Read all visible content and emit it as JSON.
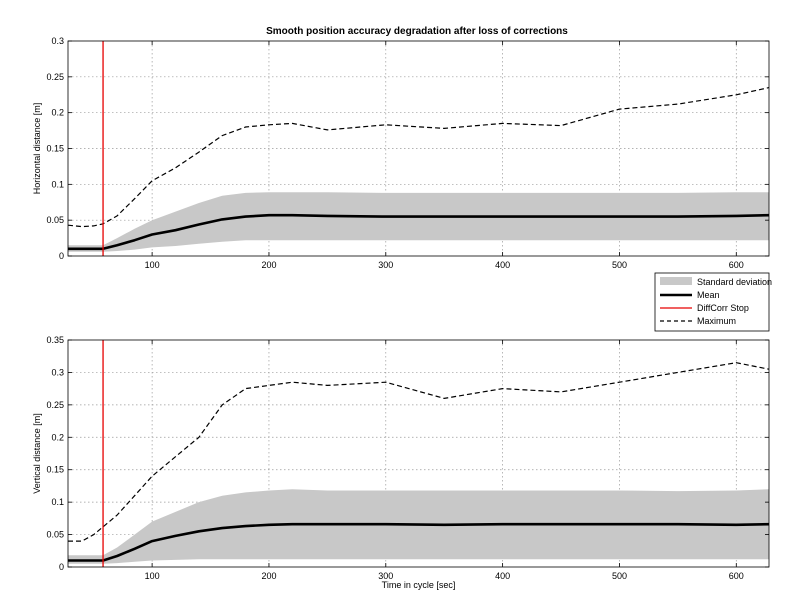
{
  "title": "Smooth position accuracy degradation after loss of corrections",
  "colors": {
    "band": "#c8c8c8",
    "mean": "#000000",
    "stop": "#e60000",
    "max": "#000000"
  },
  "legend": {
    "std_label": "Standard deviation",
    "mean_label": "Mean",
    "stop_label": "DiffCorr Stop",
    "max_label": "Maximum"
  },
  "chart_data": [
    {
      "type": "line",
      "title": "Smooth position accuracy degradation after loss of corrections",
      "xlabel": "",
      "ylabel": "Horizontal distance [m]",
      "xlim": [
        28,
        628
      ],
      "ylim": [
        0,
        0.3
      ],
      "xticks": [
        100,
        200,
        300,
        400,
        500,
        600
      ],
      "yticks": [
        0,
        0.05,
        0.1,
        0.15,
        0.2,
        0.25,
        0.3
      ],
      "ytick_labels": [
        "0",
        "0.05",
        "0.1",
        "0.15",
        "0.2",
        "0.25",
        "0.3"
      ],
      "grid": true,
      "stop_x": 58,
      "x": [
        28,
        40,
        50,
        58,
        70,
        85,
        100,
        120,
        140,
        160,
        180,
        200,
        220,
        250,
        300,
        350,
        400,
        450,
        500,
        550,
        600,
        628
      ],
      "series": [
        {
          "name": "Mean",
          "values": [
            0.01,
            0.01,
            0.01,
            0.01,
            0.015,
            0.022,
            0.03,
            0.036,
            0.044,
            0.051,
            0.055,
            0.057,
            0.057,
            0.056,
            0.055,
            0.055,
            0.055,
            0.055,
            0.055,
            0.055,
            0.056,
            0.057
          ]
        },
        {
          "name": "Standard deviation upper",
          "values": [
            0.015,
            0.015,
            0.015,
            0.015,
            0.025,
            0.038,
            0.05,
            0.062,
            0.074,
            0.084,
            0.088,
            0.089,
            0.089,
            0.089,
            0.088,
            0.088,
            0.088,
            0.088,
            0.088,
            0.088,
            0.089,
            0.089
          ]
        },
        {
          "name": "Standard deviation lower",
          "values": [
            0.006,
            0.006,
            0.006,
            0.006,
            0.007,
            0.009,
            0.012,
            0.014,
            0.017,
            0.02,
            0.022,
            0.022,
            0.022,
            0.022,
            0.022,
            0.022,
            0.022,
            0.022,
            0.022,
            0.022,
            0.022,
            0.022
          ]
        },
        {
          "name": "Maximum",
          "values": [
            0.043,
            0.041,
            0.042,
            0.045,
            0.056,
            0.08,
            0.105,
            0.123,
            0.145,
            0.168,
            0.18,
            0.183,
            0.185,
            0.176,
            0.183,
            0.178,
            0.185,
            0.182,
            0.205,
            0.212,
            0.225,
            0.235
          ]
        }
      ]
    },
    {
      "type": "line",
      "title": "",
      "xlabel": "Time in cycle [sec]",
      "ylabel": "Vertical distance [m]",
      "xlim": [
        28,
        628
      ],
      "ylim": [
        0,
        0.35
      ],
      "xticks": [
        100,
        200,
        300,
        400,
        500,
        600
      ],
      "yticks": [
        0,
        0.05,
        0.1,
        0.15,
        0.2,
        0.25,
        0.3,
        0.35
      ],
      "ytick_labels": [
        "0",
        "0.05",
        "0.1",
        "0.15",
        "0.2",
        "0.25",
        "0.3",
        "0.35"
      ],
      "grid": true,
      "stop_x": 58,
      "x": [
        28,
        40,
        50,
        58,
        70,
        85,
        100,
        120,
        140,
        160,
        180,
        200,
        220,
        250,
        300,
        350,
        400,
        450,
        500,
        550,
        600,
        628
      ],
      "series": [
        {
          "name": "Mean",
          "values": [
            0.01,
            0.01,
            0.01,
            0.01,
            0.017,
            0.028,
            0.04,
            0.048,
            0.055,
            0.06,
            0.063,
            0.065,
            0.066,
            0.066,
            0.066,
            0.065,
            0.066,
            0.066,
            0.066,
            0.066,
            0.065,
            0.066
          ]
        },
        {
          "name": "Standard deviation upper",
          "values": [
            0.018,
            0.018,
            0.018,
            0.018,
            0.03,
            0.05,
            0.07,
            0.085,
            0.1,
            0.11,
            0.115,
            0.118,
            0.12,
            0.118,
            0.118,
            0.118,
            0.118,
            0.118,
            0.118,
            0.117,
            0.118,
            0.12
          ]
        },
        {
          "name": "Standard deviation lower",
          "values": [
            0.005,
            0.005,
            0.005,
            0.005,
            0.006,
            0.008,
            0.01,
            0.011,
            0.012,
            0.012,
            0.012,
            0.012,
            0.012,
            0.012,
            0.012,
            0.012,
            0.012,
            0.012,
            0.012,
            0.012,
            0.012,
            0.012
          ]
        },
        {
          "name": "Maximum",
          "values": [
            0.04,
            0.04,
            0.05,
            0.062,
            0.08,
            0.11,
            0.14,
            0.17,
            0.2,
            0.25,
            0.275,
            0.28,
            0.285,
            0.28,
            0.285,
            0.26,
            0.275,
            0.27,
            0.285,
            0.3,
            0.315,
            0.305
          ]
        }
      ]
    }
  ]
}
